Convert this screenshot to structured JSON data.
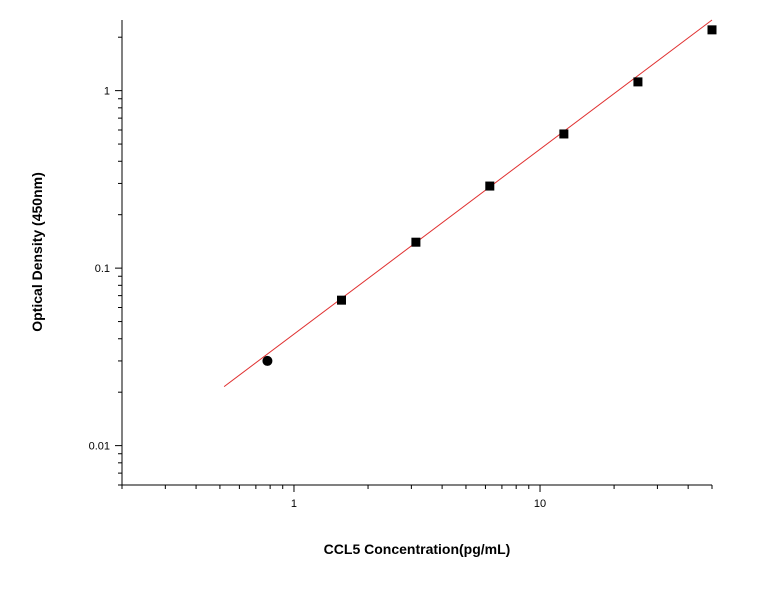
{
  "chart_data": {
    "type": "scatter",
    "xlabel": "CCL5  Concentration(pg/mL)",
    "ylabel": "Optical Density (450nm)",
    "x_scale": "log",
    "y_scale": "log",
    "xlim": [
      0.2,
      50
    ],
    "ylim": [
      0.006,
      2.5
    ],
    "x_tick_labels": [
      {
        "value": 1,
        "label": "1"
      },
      {
        "value": 10,
        "label": "10"
      }
    ],
    "y_tick_labels": [
      {
        "value": 0.01,
        "label": "0.01"
      },
      {
        "value": 0.1,
        "label": "0.1"
      },
      {
        "value": 1,
        "label": "1"
      }
    ],
    "points": [
      {
        "x": 0.78,
        "y": 0.03
      },
      {
        "x": 1.56,
        "y": 0.066
      },
      {
        "x": 3.13,
        "y": 0.14
      },
      {
        "x": 6.25,
        "y": 0.29
      },
      {
        "x": 12.5,
        "y": 0.57
      },
      {
        "x": 25,
        "y": 1.12
      },
      {
        "x": 50,
        "y": 2.2
      }
    ],
    "fit_line": {
      "x": [
        0.52,
        50
      ],
      "y": [
        0.0215,
        2.5
      ],
      "color": "#e03030"
    },
    "marker_color": "#000000",
    "grid": false,
    "legend": "none"
  }
}
